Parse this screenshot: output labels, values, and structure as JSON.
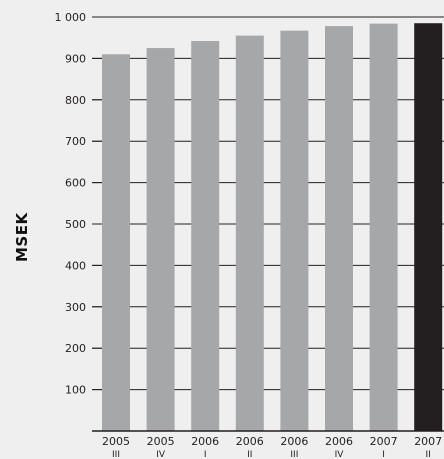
{
  "chart_data": {
    "type": "bar",
    "title": "",
    "xlabel": "",
    "ylabel": "MSEK",
    "ylim": [
      0,
      1000
    ],
    "yticks": [
      100,
      200,
      300,
      400,
      500,
      600,
      700,
      800,
      900,
      1000
    ],
    "ytick_labels": [
      "100",
      "200",
      "300",
      "400",
      "500",
      "600",
      "700",
      "800",
      "900",
      "1 000"
    ],
    "grid": true,
    "categories": [
      {
        "year": "2005",
        "quarter": "III"
      },
      {
        "year": "2005",
        "quarter": "IV"
      },
      {
        "year": "2006",
        "quarter": "I"
      },
      {
        "year": "2006",
        "quarter": "II"
      },
      {
        "year": "2006",
        "quarter": "III"
      },
      {
        "year": "2006",
        "quarter": "IV"
      },
      {
        "year": "2007",
        "quarter": "I"
      },
      {
        "year": "2007",
        "quarter": "II"
      }
    ],
    "values": [
      910,
      925,
      942,
      955,
      967,
      978,
      984,
      985
    ],
    "colors": {
      "bar": "#a6a7a9",
      "highlight_bar": "#231f20",
      "grid": "#231f20",
      "text": "#231f20",
      "background": "#efefef"
    },
    "highlight_index": 7
  }
}
